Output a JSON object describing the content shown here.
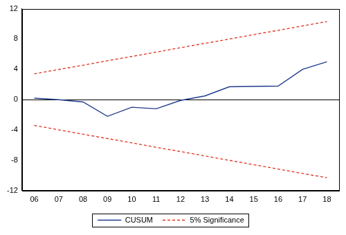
{
  "chart_data": {
    "type": "line",
    "categories": [
      "06",
      "07",
      "08",
      "09",
      "10",
      "11",
      "12",
      "13",
      "14",
      "15",
      "16",
      "17",
      "18"
    ],
    "series": [
      {
        "name": "CUSUM",
        "color": "#1f3b8f",
        "line_style": "solid",
        "values": [
          0.2,
          0.0,
          -0.3,
          -2.2,
          -1.0,
          -1.2,
          -0.1,
          0.5,
          1.7,
          1.75,
          1.8,
          4.0,
          5.0
        ]
      },
      {
        "name": "5% Significance",
        "color": "#e0301e",
        "line_style": "dashed",
        "values": [
          3.4,
          3.98,
          4.55,
          5.13,
          5.7,
          6.28,
          6.85,
          7.43,
          8.0,
          8.58,
          9.15,
          9.73,
          10.3
        ]
      },
      {
        "name": "5% Significance",
        "color": "#e0301e",
        "line_style": "dashed",
        "values": [
          -3.4,
          -3.98,
          -4.55,
          -5.13,
          -5.7,
          -6.28,
          -6.85,
          -7.43,
          -8.0,
          -8.58,
          -9.15,
          -9.73,
          -10.3
        ]
      }
    ],
    "ylim": [
      -12,
      12
    ],
    "yticks": [
      -12,
      -8,
      -4,
      0,
      4,
      8,
      12
    ],
    "grid": false,
    "legend": "bottom"
  }
}
